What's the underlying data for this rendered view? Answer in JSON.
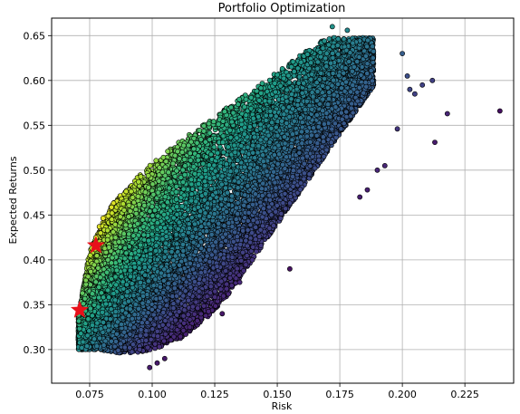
{
  "chart_data": {
    "type": "scatter",
    "title": "Portfolio Optimization",
    "xlabel": "Risk",
    "ylabel": "Expected Returns",
    "xlim": [
      0.0598,
      0.2445
    ],
    "ylim": [
      0.2625,
      0.6695
    ],
    "x_ticks": [
      0.075,
      0.1,
      0.125,
      0.15,
      0.175,
      0.2,
      0.225
    ],
    "x_tick_labels": [
      "0.075",
      "0.100",
      "0.125",
      "0.150",
      "0.175",
      "0.200",
      "0.225"
    ],
    "y_ticks": [
      0.3,
      0.35,
      0.4,
      0.45,
      0.5,
      0.55,
      0.6,
      0.65
    ],
    "y_tick_labels": [
      "0.30",
      "0.35",
      "0.40",
      "0.45",
      "0.50",
      "0.55",
      "0.60",
      "0.65"
    ],
    "grid": true,
    "colormap": "viridis",
    "marker_edge_color": "#000000",
    "highlight_color": "#e8101a",
    "cloud_envelope": {
      "description_free": true,
      "upper_x": [
        0.071,
        0.075,
        0.08,
        0.085,
        0.09,
        0.095,
        0.1,
        0.11,
        0.12,
        0.13,
        0.14,
        0.15,
        0.16,
        0.17
      ],
      "upper_y": [
        0.345,
        0.41,
        0.445,
        0.465,
        0.48,
        0.495,
        0.508,
        0.53,
        0.55,
        0.57,
        0.59,
        0.61,
        0.63,
        0.648
      ],
      "lower_x": [
        0.078,
        0.09,
        0.1,
        0.11,
        0.12,
        0.13,
        0.14,
        0.15,
        0.16,
        0.17,
        0.18,
        0.19
      ],
      "lower_y": [
        0.3,
        0.295,
        0.3,
        0.31,
        0.33,
        0.36,
        0.4,
        0.44,
        0.48,
        0.52,
        0.56,
        0.6
      ]
    },
    "sparse_points": [
      {
        "x": 0.239,
        "y": 0.566
      },
      {
        "x": 0.218,
        "y": 0.563
      },
      {
        "x": 0.213,
        "y": 0.531
      },
      {
        "x": 0.212,
        "y": 0.6
      },
      {
        "x": 0.208,
        "y": 0.595
      },
      {
        "x": 0.205,
        "y": 0.585
      },
      {
        "x": 0.2,
        "y": 0.63
      },
      {
        "x": 0.198,
        "y": 0.546
      },
      {
        "x": 0.202,
        "y": 0.605
      },
      {
        "x": 0.203,
        "y": 0.59
      },
      {
        "x": 0.193,
        "y": 0.505
      },
      {
        "x": 0.19,
        "y": 0.5
      },
      {
        "x": 0.186,
        "y": 0.478
      },
      {
        "x": 0.183,
        "y": 0.47
      },
      {
        "x": 0.172,
        "y": 0.66
      },
      {
        "x": 0.178,
        "y": 0.656
      },
      {
        "x": 0.155,
        "y": 0.39
      },
      {
        "x": 0.14,
        "y": 0.4
      },
      {
        "x": 0.135,
        "y": 0.375
      },
      {
        "x": 0.128,
        "y": 0.34
      },
      {
        "x": 0.115,
        "y": 0.325
      },
      {
        "x": 0.105,
        "y": 0.29
      },
      {
        "x": 0.102,
        "y": 0.285
      },
      {
        "x": 0.099,
        "y": 0.28
      },
      {
        "x": 0.095,
        "y": 0.3
      },
      {
        "x": 0.091,
        "y": 0.302
      }
    ],
    "highlight_points": [
      {
        "x": 0.0775,
        "y": 0.416
      },
      {
        "x": 0.071,
        "y": 0.344
      }
    ]
  }
}
